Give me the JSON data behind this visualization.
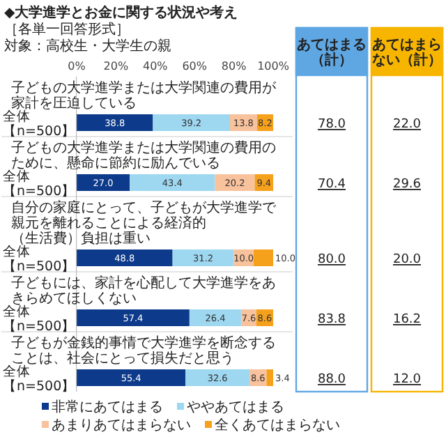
{
  "chart_data": [
    {
      "type": "bar",
      "orientation": "horizontal",
      "stacked": true,
      "title": "◆大学進学とお金に関する状況や考え",
      "subtitle": "［各単一回答形式］",
      "annotations": [
        "対象：高校生・大学生の親",
        "子どもの大学進学または大学関連の費用が家計を圧迫している",
        "子どもの大学進学または大学関連の費用のために、懸命に節約に励んでいる",
        "自分の家庭にとって、子どもが大学進学で親元を離れることによる経済的（生活費）負担は重い",
        "子どもには、家計を心配して大学進学をあきらめてほしくない",
        "子どもが金銭的事情で大学進学を断念することは、社会にとって損失だと思う"
      ],
      "categories": [
        "全体【n=500】",
        "全体【n=500】",
        "全体【n=500】",
        "全体【n=500】",
        "全体【n=500】"
      ],
      "xlim": [
        0,
        100
      ],
      "xticks": [
        {
          "value": 0,
          "label": "0%"
        },
        {
          "value": 20,
          "label": "20%"
        },
        {
          "value": 40,
          "label": "40%"
        },
        {
          "value": 60,
          "label": "60%"
        },
        {
          "value": 80,
          "label": "80%"
        },
        {
          "value": 100,
          "label": "100%"
        }
      ],
      "legend": "bottom",
      "series": [
        {
          "name": "非常にあてはまる",
          "color": "#0d3a8a",
          "values": [
            38.8,
            27.0,
            48.8,
            57.4,
            55.4
          ],
          "value_labels": [
            "38.8",
            "27.0",
            "48.8",
            "57.4",
            "55.4"
          ]
        },
        {
          "name": "ややあてはまる",
          "color": "#9ed7f0",
          "values": [
            39.2,
            43.4,
            31.2,
            26.4,
            32.6
          ],
          "value_labels": [
            "39.2",
            "43.4",
            "31.2",
            "26.4",
            "32.6"
          ]
        },
        {
          "name": "あまりあてはまらない",
          "color": "#f8c29c",
          "values": [
            13.8,
            20.2,
            10.0,
            7.6,
            8.6
          ],
          "value_labels": [
            "13.8",
            "20.2",
            "10.0",
            "7.6",
            "8.6"
          ]
        },
        {
          "name": "全くあてはまらない",
          "color": "#f5a11c",
          "values": [
            8.2,
            9.4,
            10.0,
            8.6,
            3.4
          ],
          "value_labels": [
            "8.2",
            "9.4",
            "10.0",
            "8.6",
            "3.4"
          ]
        }
      ]
    },
    {
      "type": "other",
      "title": "あてはまる（計）",
      "color": "#5ea7e3",
      "categories": [
        null,
        null,
        null,
        null,
        null
      ],
      "values": [
        78.0,
        70.4,
        80.0,
        83.8,
        88.0
      ],
      "value_labels": [
        "78.0",
        "70.4",
        "80.0",
        "83.8",
        "88.0"
      ]
    },
    {
      "type": "other",
      "title": "あてはまらない（計）",
      "color": "#f7b500",
      "categories": [
        null,
        null,
        null,
        null,
        null
      ],
      "values": [
        22.0,
        29.6,
        20.0,
        16.2,
        12.0
      ],
      "value_labels": [
        "22.0",
        "29.6",
        "20.0",
        "16.2",
        "12.0"
      ]
    }
  ]
}
